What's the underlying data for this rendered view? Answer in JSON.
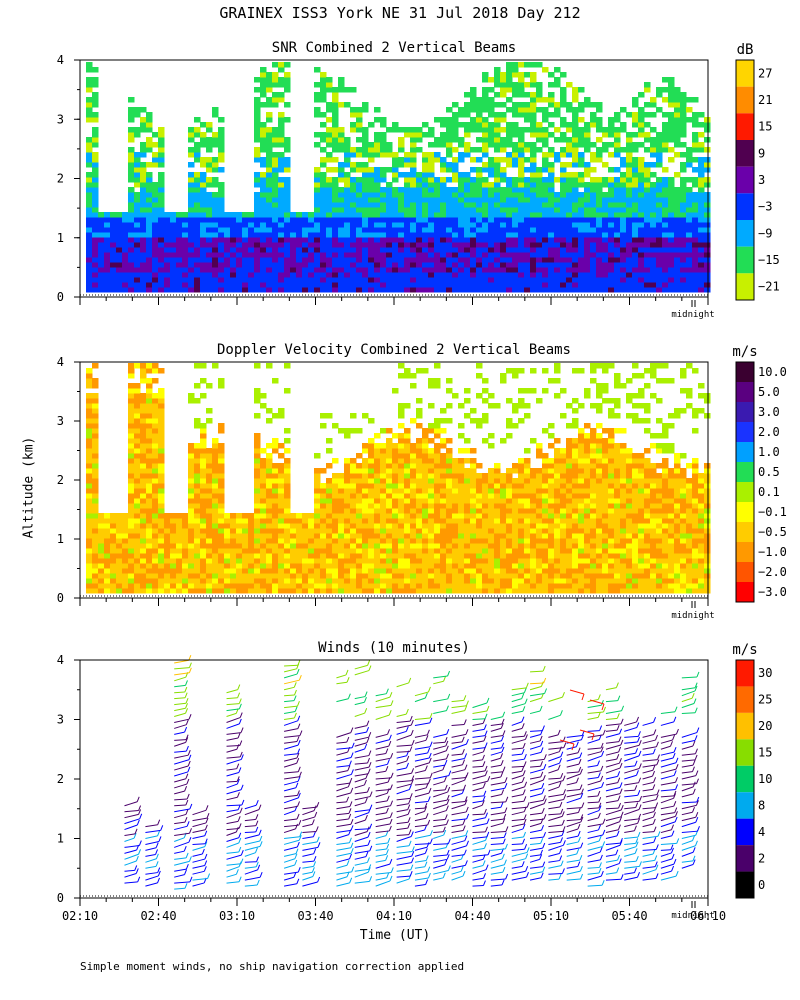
{
  "title": "GRAINEX ISS3 York NE  31 Jul 2018 Day 212",
  "ylabel": "Altitude (km)",
  "xlabel": "Time (UT)",
  "footnote": "Simple moment winds, no ship navigation correction applied",
  "midnight_label": "midnight",
  "chart_data": [
    {
      "type": "heatmap",
      "title": "SNR Combined 2 Vertical Beams",
      "unit": "dB",
      "ylim": [
        0,
        4
      ],
      "yticks": [
        "0",
        "1",
        "2",
        "3",
        "4"
      ],
      "colorbar": {
        "labels": [
          "27",
          "21",
          "15",
          "9",
          "3",
          "−3",
          "−9",
          "−15",
          "−21"
        ],
        "colors": [
          "#ffd500",
          "#ff8c00",
          "#ff1a00",
          "#500050",
          "#6a00aa",
          "#0033ff",
          "#00aaff",
          "#22dd55",
          "#c8f000"
        ]
      }
    },
    {
      "type": "heatmap",
      "title": "Doppler Velocity Combined 2 Vertical Beams",
      "unit": "m/s",
      "ylim": [
        0,
        4
      ],
      "yticks": [
        "0",
        "1",
        "2",
        "3",
        "4"
      ],
      "colorbar": {
        "labels": [
          "10.0",
          "5.0",
          "3.0",
          "2.0",
          "1.0",
          "0.5",
          "0.1",
          "−0.1",
          "−0.5",
          "−1.0",
          "−2.0",
          "−3.0"
        ],
        "colors": [
          "#3a0030",
          "#5a0080",
          "#3a1ab0",
          "#1a33ff",
          "#00a0ff",
          "#22dd55",
          "#aaf000",
          "#ffff00",
          "#ffcc00",
          "#ff9900",
          "#ff5500",
          "#ff0000"
        ]
      }
    },
    {
      "type": "barbs",
      "title": "Winds (10 minutes)",
      "unit": "m/s",
      "ylim": [
        0,
        4
      ],
      "yticks": [
        "0",
        "1",
        "2",
        "3",
        "4"
      ],
      "xticks": [
        "02:10",
        "02:40",
        "03:10",
        "03:40",
        "04:10",
        "04:40",
        "05:10",
        "05:40",
        "06:10"
      ],
      "colorbar": {
        "labels": [
          "30",
          "25",
          "20",
          "15",
          "10",
          "8",
          "4",
          "2",
          "0"
        ],
        "colors": [
          "#ff1a00",
          "#ff6a00",
          "#ffc000",
          "#88dd00",
          "#00cc66",
          "#00aaee",
          "#0000ff",
          "#4a006a",
          "#000000"
        ]
      }
    }
  ]
}
